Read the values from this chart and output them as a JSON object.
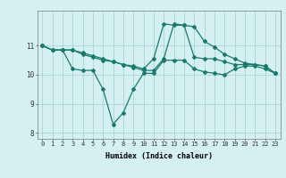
{
  "line1": {
    "x": [
      0,
      1,
      2,
      3,
      4,
      5,
      6,
      7,
      8,
      9,
      10,
      11,
      12,
      13,
      14,
      15,
      16,
      17,
      18,
      19,
      20,
      21,
      22,
      23
    ],
    "y": [
      11.0,
      10.85,
      10.85,
      10.2,
      10.15,
      10.15,
      9.5,
      8.3,
      8.7,
      9.5,
      10.05,
      10.05,
      10.5,
      10.5,
      10.5,
      10.2,
      10.1,
      10.05,
      10.0,
      10.2,
      10.3,
      10.3,
      10.2,
      10.05
    ]
  },
  "line2": {
    "x": [
      0,
      1,
      2,
      3,
      4,
      5,
      6,
      7,
      8,
      9,
      10,
      11,
      12,
      13,
      14,
      15,
      16,
      17,
      18,
      19,
      20,
      21,
      22,
      23
    ],
    "y": [
      11.0,
      10.85,
      10.85,
      10.85,
      10.7,
      10.6,
      10.5,
      10.45,
      10.35,
      10.3,
      10.2,
      10.55,
      11.75,
      11.7,
      11.7,
      10.6,
      10.55,
      10.55,
      10.45,
      10.35,
      10.35,
      10.35,
      10.3,
      10.05
    ]
  },
  "line3": {
    "x": [
      0,
      1,
      2,
      3,
      4,
      5,
      6,
      7,
      8,
      9,
      10,
      11,
      12,
      13,
      14,
      15,
      16,
      17,
      18,
      19,
      20,
      21,
      22,
      23
    ],
    "y": [
      11.0,
      10.85,
      10.85,
      10.85,
      10.75,
      10.65,
      10.55,
      10.45,
      10.35,
      10.25,
      10.15,
      10.15,
      10.55,
      11.75,
      11.7,
      11.65,
      11.15,
      10.95,
      10.7,
      10.55,
      10.4,
      10.35,
      10.3,
      10.05
    ]
  },
  "line_color": "#1a7a6e",
  "bg_color": "#d4f0f0",
  "grid_color": "#aad4d4",
  "xlabel": "Humidex (Indice chaleur)",
  "ylim": [
    7.8,
    12.2
  ],
  "xlim": [
    -0.5,
    23.5
  ],
  "yticks": [
    8,
    9,
    10,
    11
  ],
  "xticks": [
    0,
    1,
    2,
    3,
    4,
    5,
    6,
    7,
    8,
    9,
    10,
    11,
    12,
    13,
    14,
    15,
    16,
    17,
    18,
    19,
    20,
    21,
    22,
    23
  ]
}
